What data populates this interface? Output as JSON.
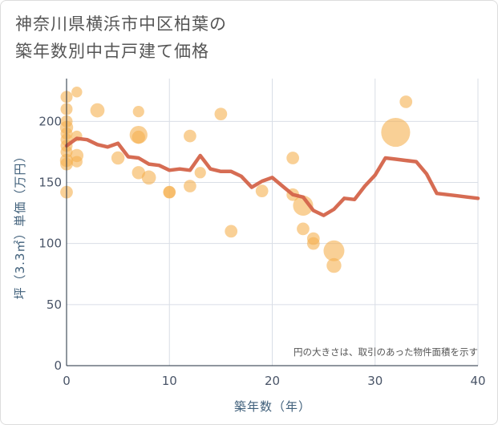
{
  "chart_data": {
    "type": "scatter+line",
    "title": "神奈川県横浜市中区柏葉の築年数別中古戸建て価格",
    "title_lines": [
      "神奈川県横浜市中区柏葉の",
      "築年数別中古戸建て価格"
    ],
    "xlabel": "築年数（年）",
    "ylabel": "坪（3.3㎡）単価（万円）",
    "xlim": [
      0,
      40
    ],
    "ylim": [
      0,
      235
    ],
    "xticks": [
      0,
      10,
      20,
      30,
      40
    ],
    "yticks": [
      0,
      50,
      100,
      150,
      200
    ],
    "annotation": "円の大きさは、取引のあった物件面積を示す",
    "colors": {
      "bubble": "#f5b050",
      "line": "#d4644a",
      "grid": "#d9dee6"
    },
    "scatter": [
      {
        "x": 0,
        "y": 220,
        "s": 1
      },
      {
        "x": 0,
        "y": 210,
        "s": 1
      },
      {
        "x": 0,
        "y": 200,
        "s": 1
      },
      {
        "x": 0,
        "y": 195,
        "s": 1.2
      },
      {
        "x": 0,
        "y": 190,
        "s": 1
      },
      {
        "x": 0,
        "y": 185,
        "s": 1
      },
      {
        "x": 0,
        "y": 180,
        "s": 1
      },
      {
        "x": 0,
        "y": 175,
        "s": 1
      },
      {
        "x": 0,
        "y": 168,
        "s": 1.2
      },
      {
        "x": 0,
        "y": 165,
        "s": 1.1
      },
      {
        "x": 0,
        "y": 142,
        "s": 1.1
      },
      {
        "x": 1,
        "y": 224,
        "s": 0.8
      },
      {
        "x": 1,
        "y": 188,
        "s": 0.8
      },
      {
        "x": 1,
        "y": 172,
        "s": 1.2
      },
      {
        "x": 1,
        "y": 167,
        "s": 0.9
      },
      {
        "x": 3,
        "y": 209,
        "s": 1.4
      },
      {
        "x": 5,
        "y": 170,
        "s": 1.2
      },
      {
        "x": 7,
        "y": 208,
        "s": 0.9
      },
      {
        "x": 7,
        "y": 189,
        "s": 2.2
      },
      {
        "x": 7,
        "y": 187,
        "s": 1.2
      },
      {
        "x": 7,
        "y": 158,
        "s": 1.2
      },
      {
        "x": 8,
        "y": 154,
        "s": 1.4
      },
      {
        "x": 10,
        "y": 142,
        "s": 1.1
      },
      {
        "x": 10,
        "y": 142,
        "s": 1
      },
      {
        "x": 12,
        "y": 188,
        "s": 1.1
      },
      {
        "x": 12,
        "y": 147,
        "s": 1.1
      },
      {
        "x": 13,
        "y": 158,
        "s": 0.9
      },
      {
        "x": 15,
        "y": 206,
        "s": 1.1
      },
      {
        "x": 16,
        "y": 110,
        "s": 1.1
      },
      {
        "x": 19,
        "y": 143,
        "s": 1.1
      },
      {
        "x": 22,
        "y": 170,
        "s": 1.1
      },
      {
        "x": 22,
        "y": 140,
        "s": 1.1
      },
      {
        "x": 23,
        "y": 131,
        "s": 2.8
      },
      {
        "x": 23,
        "y": 112,
        "s": 1.1
      },
      {
        "x": 24,
        "y": 104,
        "s": 1.1
      },
      {
        "x": 24,
        "y": 100,
        "s": 1.1
      },
      {
        "x": 26,
        "y": 94,
        "s": 3.0
      },
      {
        "x": 26,
        "y": 82,
        "s": 1.5
      },
      {
        "x": 32,
        "y": 191,
        "s": 5.8
      },
      {
        "x": 33,
        "y": 216,
        "s": 1.1
      }
    ],
    "line": {
      "x": [
        0,
        1,
        2,
        3,
        4,
        5,
        6,
        7,
        8,
        9,
        10,
        11,
        12,
        13,
        14,
        15,
        16,
        17,
        18,
        19,
        20,
        21,
        22,
        23,
        24,
        25,
        26,
        27,
        28,
        29,
        30,
        31,
        32,
        33,
        34,
        35,
        36,
        37,
        38,
        39,
        40
      ],
      "y": [
        180,
        186,
        185,
        181,
        179,
        182,
        171,
        170,
        165,
        164,
        160,
        161,
        160,
        172,
        161,
        159,
        159,
        155,
        146,
        151,
        154,
        147,
        140,
        138,
        127,
        123,
        128,
        137,
        136,
        147,
        156,
        170,
        169,
        168,
        167,
        157,
        141,
        140,
        139,
        138,
        137
      ]
    }
  }
}
